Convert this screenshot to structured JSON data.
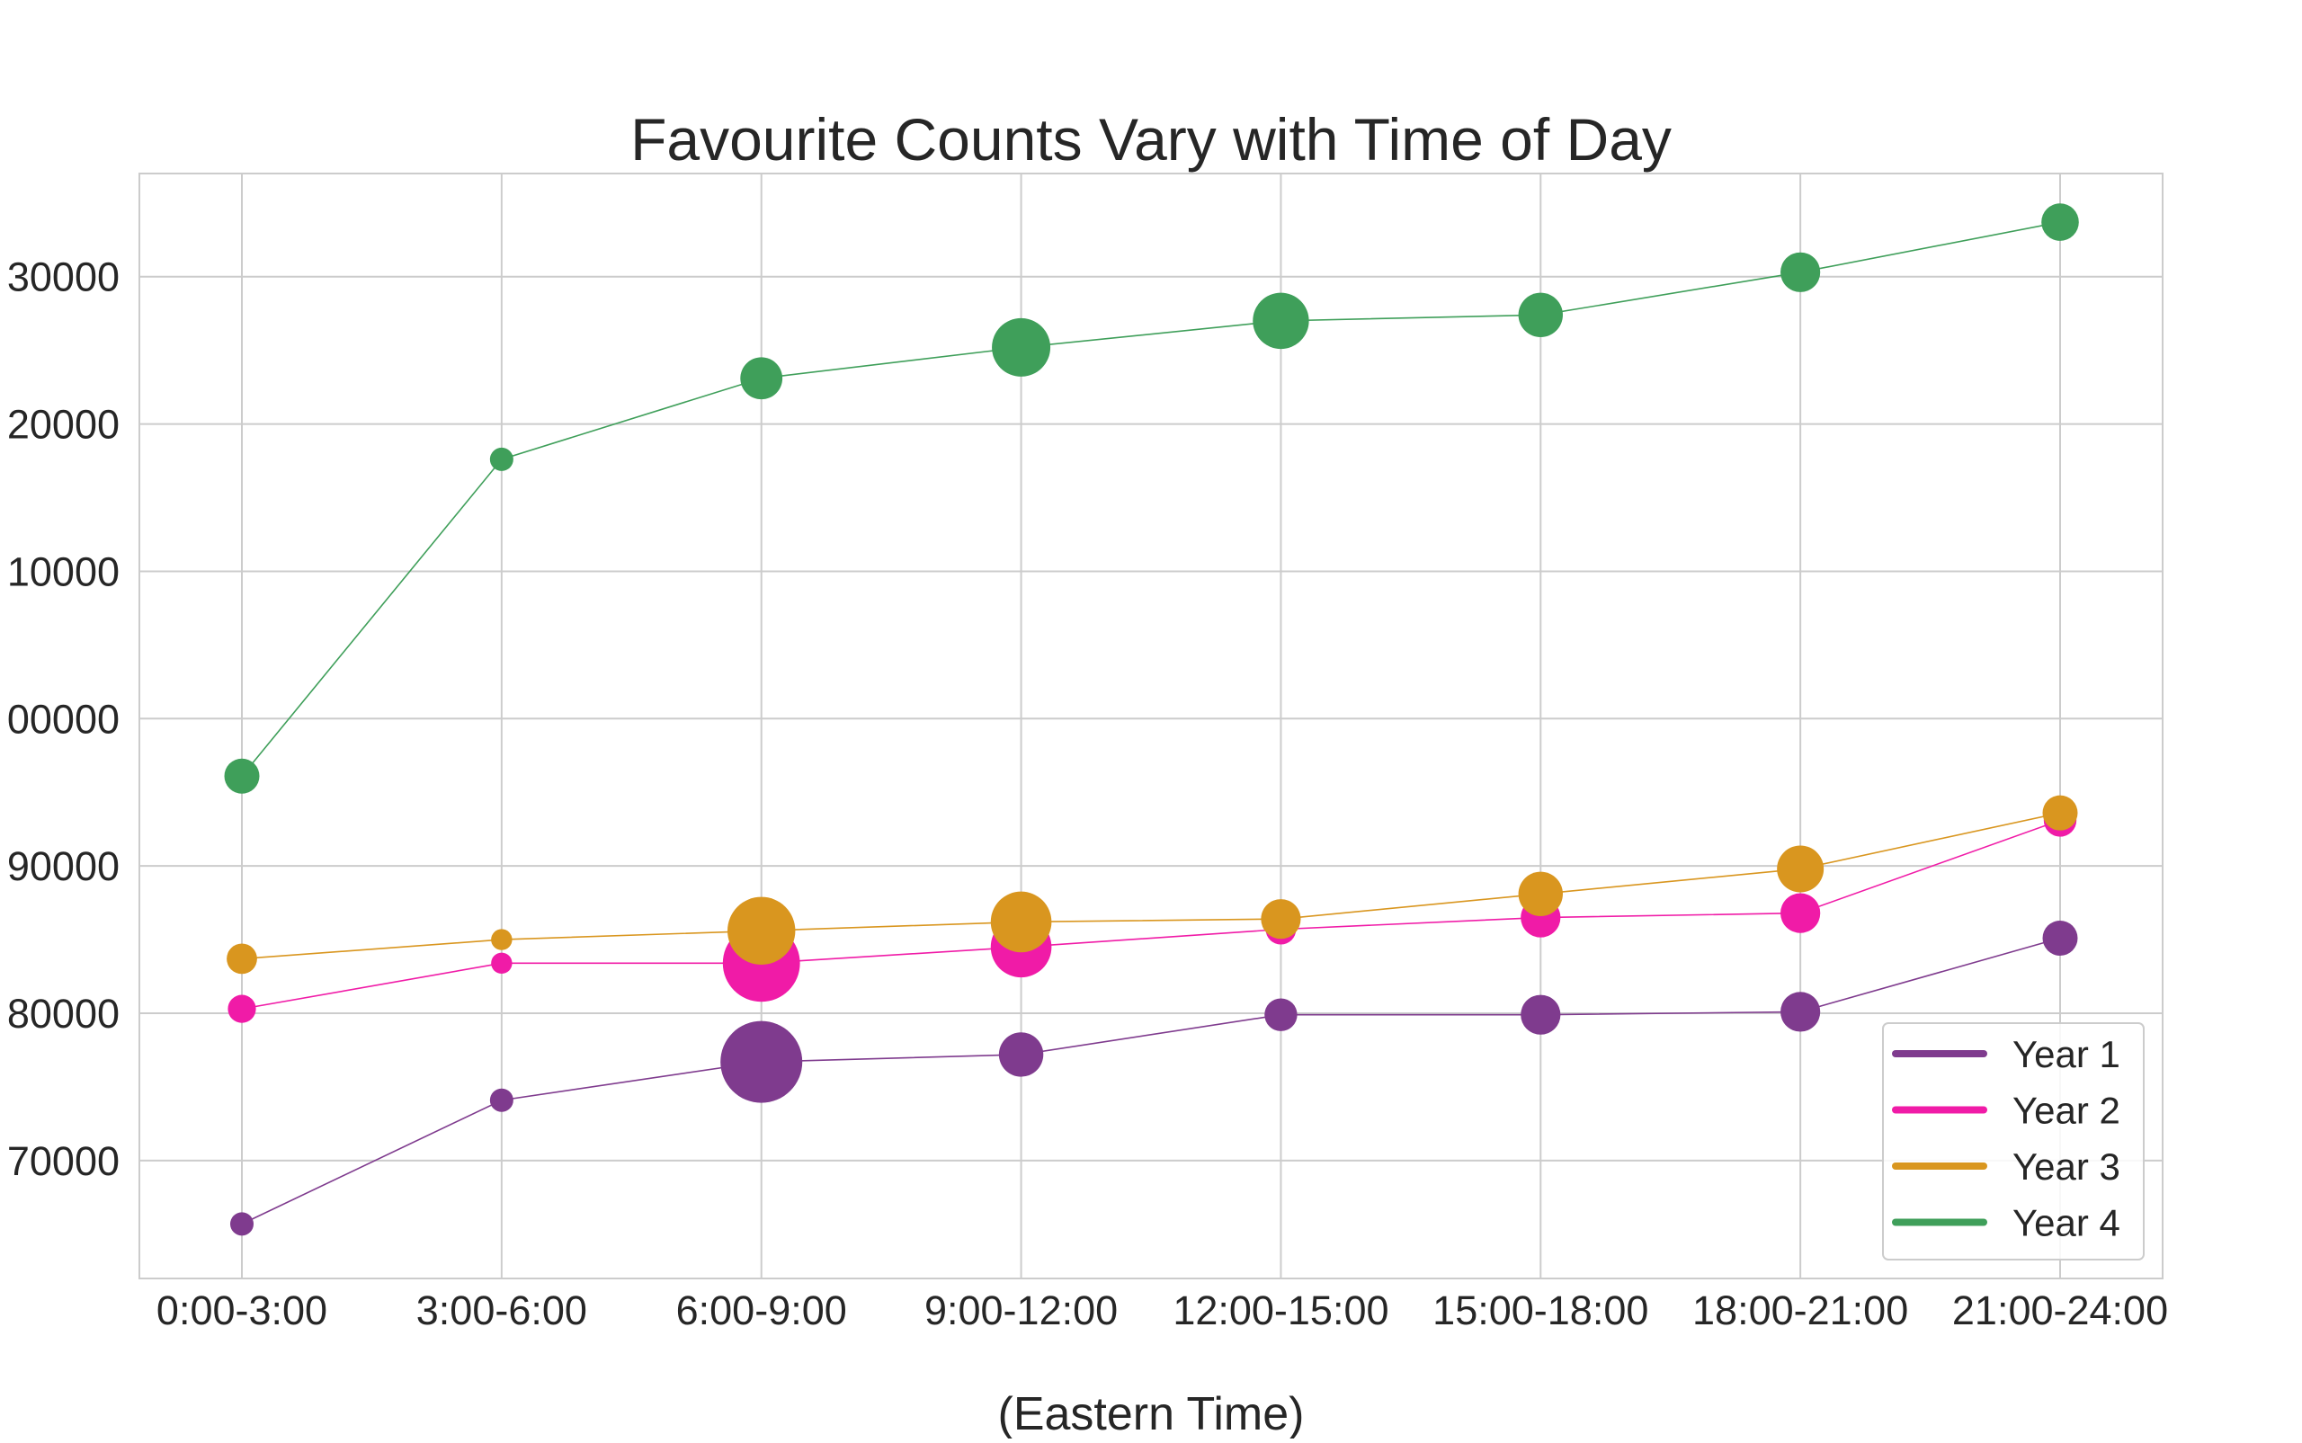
{
  "chart_data": {
    "type": "scatter",
    "title": "Favourite Counts Vary with Time of Day",
    "xlabel": "(Eastern Time)",
    "ylabel": "",
    "categories": [
      "0:00-3:00",
      "3:00-6:00",
      "6:00-9:00",
      "9:00-12:00",
      "12:00-15:00",
      "15:00-18:00",
      "18:00-21:00",
      "21:00-24:00"
    ],
    "yticks": [
      "70000",
      "80000",
      "90000",
      "00000",
      "10000",
      "20000",
      "30000"
    ],
    "ylim": [
      62000,
      137000
    ],
    "grid": true,
    "legend": "lower-right",
    "series": [
      {
        "name": "Year 1",
        "color": "#7f3b8e",
        "values": [
          65700,
          74100,
          76700,
          77200,
          79900,
          79900,
          80100,
          85100
        ],
        "marker_weight": [
          1.0,
          1.0,
          3.5,
          1.9,
          1.4,
          1.7,
          1.7,
          1.5
        ]
      },
      {
        "name": "Year 2",
        "color": "#f01ba7",
        "values": [
          80300,
          83400,
          83400,
          84500,
          85700,
          86500,
          86800,
          93100
        ],
        "marker_weight": [
          1.2,
          0.9,
          3.3,
          2.6,
          1.3,
          1.7,
          1.7,
          1.4
        ]
      },
      {
        "name": "Year 3",
        "color": "#d9961f",
        "values": [
          83700,
          85000,
          85600,
          86200,
          86400,
          88100,
          89800,
          93600
        ],
        "marker_weight": [
          1.3,
          0.9,
          2.9,
          2.6,
          1.7,
          1.9,
          2.0,
          1.5
        ]
      },
      {
        "name": "Year 4",
        "color": "#3f9f5a",
        "values": [
          96100,
          117600,
          123100,
          125200,
          127000,
          127400,
          130300,
          133700
        ],
        "marker_weight": [
          1.5,
          1.0,
          1.8,
          2.5,
          2.4,
          1.9,
          1.7,
          1.6
        ]
      }
    ]
  }
}
